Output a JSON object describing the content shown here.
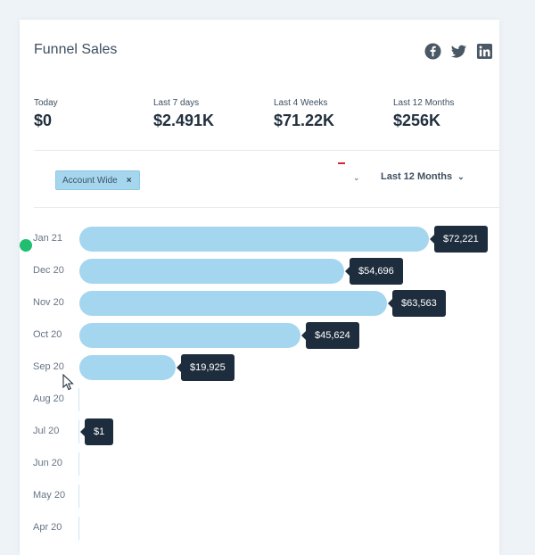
{
  "header": {
    "title": "Funnel Sales"
  },
  "social": [
    {
      "name": "facebook-icon"
    },
    {
      "name": "twitter-icon"
    },
    {
      "name": "linkedin-icon"
    }
  ],
  "stats": [
    {
      "label": "Today",
      "value": "$0"
    },
    {
      "label": "Last 7 days",
      "value": "$2.491K"
    },
    {
      "label": "Last 4 Weeks",
      "value": "$71.22K"
    },
    {
      "label": "Last 12 Months",
      "value": "$256K"
    }
  ],
  "filters": {
    "chip_label": "Account Wide",
    "chip_remove": "×",
    "period_label": "Last 12 Months"
  },
  "colors": {
    "bar": "#a5d6ef",
    "tooltip": "#1e2d3d",
    "indicator": "#1fbf6f"
  },
  "chart_data": {
    "type": "bar",
    "orientation": "horizontal",
    "categories": [
      "Jan 21",
      "Dec 20",
      "Nov 20",
      "Oct 20",
      "Sep 20",
      "Aug 20",
      "Jul 20",
      "Jun 20",
      "May 20",
      "Apr 20"
    ],
    "values": [
      72221,
      54696,
      63563,
      45624,
      19925,
      null,
      1,
      null,
      null,
      null
    ],
    "data_labels": [
      "$72,221",
      "$54,696",
      "$63,563",
      "$45,624",
      "$19,925",
      "",
      "$1",
      "",
      "",
      ""
    ]
  }
}
